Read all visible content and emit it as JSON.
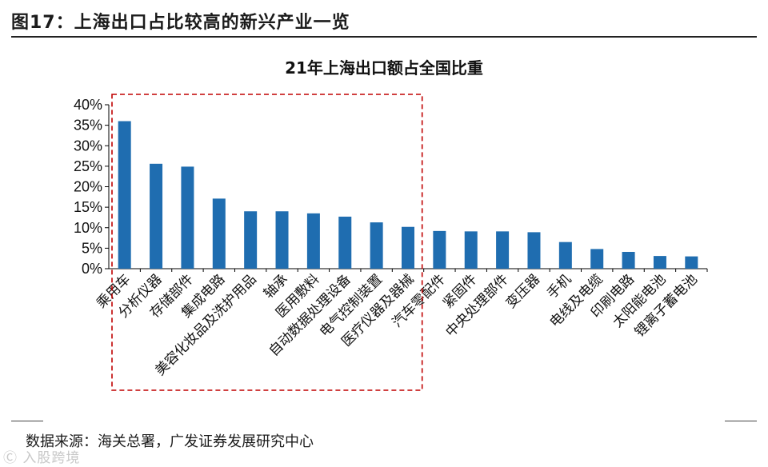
{
  "figure": {
    "title": "图17：上海出口占比较高的新兴产业一览",
    "source": "数据来源：海关总署，广发证券发展研究中心",
    "watermark": "Ⓒ 入股跨境"
  },
  "colors": {
    "bar": "#1f6db0",
    "highlight_box": "#c00000",
    "axis": "#000000"
  },
  "chart_data": {
    "type": "bar",
    "title": "21年上海出口额占全国比重",
    "xlabel": "",
    "ylabel": "",
    "ylim": [
      0,
      40
    ],
    "yticks": [
      "0%",
      "5%",
      "10%",
      "15%",
      "20%",
      "25%",
      "30%",
      "35%",
      "40%"
    ],
    "categories": [
      "乘用车",
      "分析仪器",
      "存储部件",
      "集成电路",
      "美容化妆品及洗护用品",
      "轴承",
      "医用敷料",
      "自动数据处理设备",
      "电气控制装置",
      "医疗仪器及器械",
      "汽车零配件",
      "紧固件",
      "中央处理部件",
      "变压器",
      "手机",
      "电线及电缆",
      "印刷电路",
      "太阳能电池",
      "锂离子蓄电池"
    ],
    "values": [
      36.0,
      25.6,
      24.9,
      17.1,
      14.0,
      14.0,
      13.5,
      12.7,
      11.3,
      10.2,
      9.2,
      9.1,
      9.1,
      8.9,
      6.5,
      4.8,
      4.1,
      3.1,
      3.0
    ],
    "highlight_range": [
      "乘用车",
      "医疗仪器及器械"
    ]
  }
}
